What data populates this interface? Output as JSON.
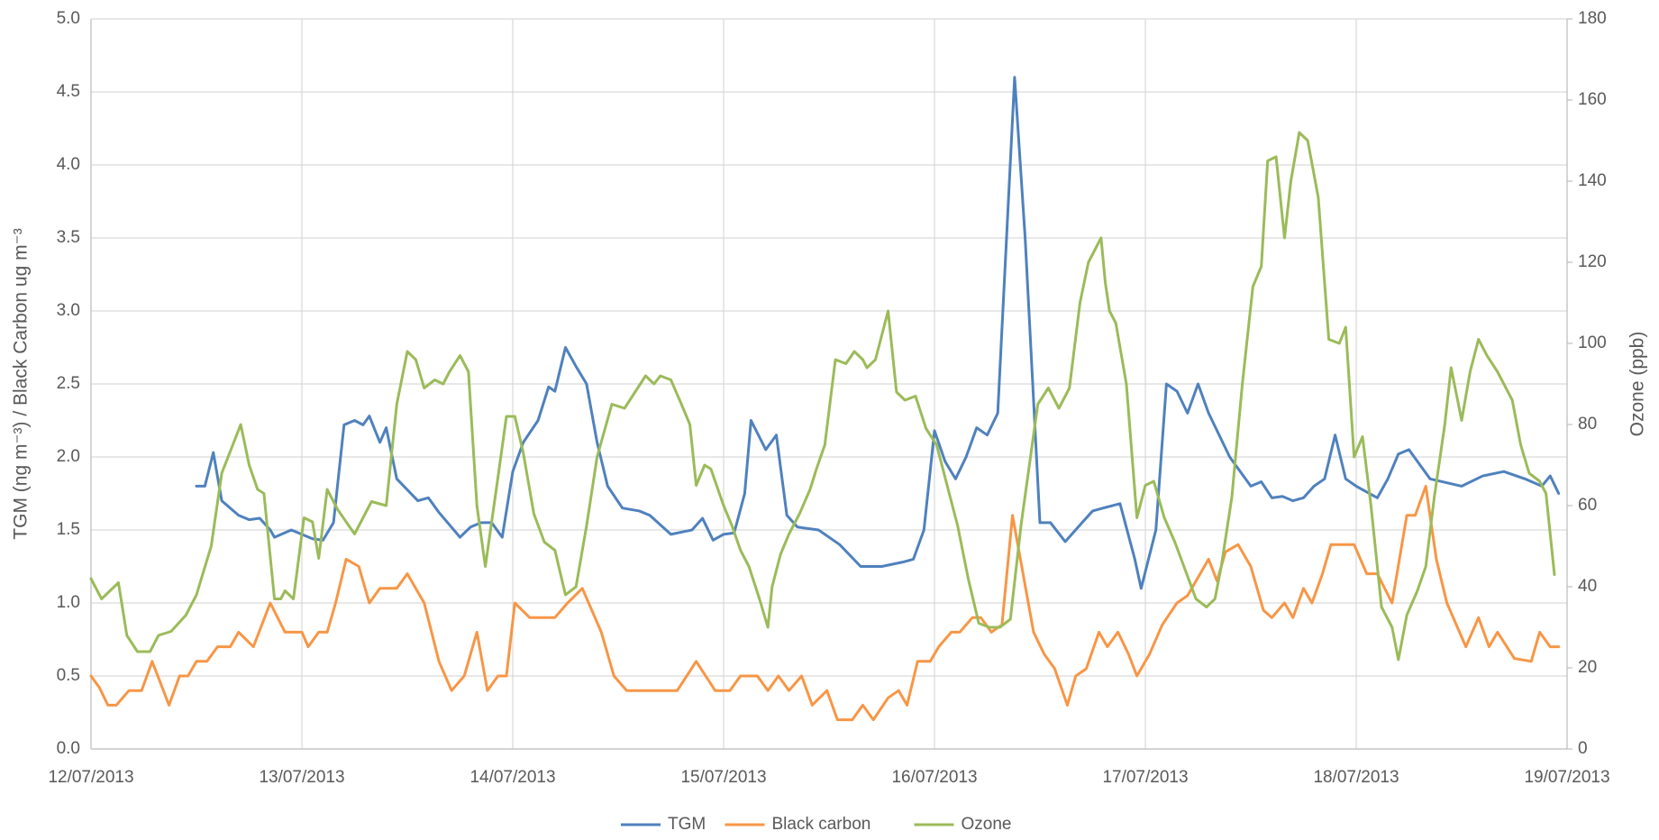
{
  "chart_data": {
    "type": "line",
    "ylabel": "TGM  (ng m⁻³) / Black Carbon ug m⁻³",
    "y2label": "Ozone (ppb)",
    "xlim": [
      0,
      7
    ],
    "xticks": [
      {
        "value": 0,
        "label": "12/07/2013"
      },
      {
        "value": 1,
        "label": "13/07/2013"
      },
      {
        "value": 2,
        "label": "14/07/2013"
      },
      {
        "value": 3,
        "label": "15/07/2013"
      },
      {
        "value": 4,
        "label": "16/07/2013"
      },
      {
        "value": 5,
        "label": "17/07/2013"
      },
      {
        "value": 6,
        "label": "18/07/2013"
      },
      {
        "value": 7,
        "label": "19/07/2013"
      }
    ],
    "ylim": [
      0,
      5
    ],
    "yticks": [
      {
        "value": 0,
        "label": "0.0"
      },
      0.5,
      {
        "value": 1,
        "label": "1.0"
      },
      1.5,
      {
        "value": 2,
        "label": "2.0"
      },
      2.5,
      {
        "value": 3,
        "label": "3.0"
      },
      3.5,
      {
        "value": 4,
        "label": "4.0"
      },
      4.5,
      {
        "value": 5,
        "label": "5.0"
      }
    ],
    "y2lim": [
      0,
      180
    ],
    "y2ticks": [
      0,
      20,
      40,
      60,
      80,
      100,
      120,
      140,
      160,
      180
    ],
    "grid": true,
    "legend": "bottom",
    "series": [
      {
        "name": "TGM",
        "color": "#4f81bd",
        "x": [
          0.5,
          0.54,
          0.58,
          0.62,
          0.66,
          0.7,
          0.75,
          0.8,
          0.85,
          0.87,
          0.95,
          1.0,
          1.05,
          1.1,
          1.15,
          1.2,
          1.25,
          1.29,
          1.32,
          1.37,
          1.4,
          1.45,
          1.55,
          1.6,
          1.65,
          1.75,
          1.8,
          1.85,
          1.9,
          1.95,
          2.0,
          2.05,
          2.12,
          2.17,
          2.2,
          2.25,
          2.3,
          2.35,
          2.4,
          2.45,
          2.52,
          2.6,
          2.65,
          2.75,
          2.85,
          2.9,
          2.95,
          3.0,
          3.05,
          3.1,
          3.13,
          3.2,
          3.25,
          3.3,
          3.35,
          3.45,
          3.55,
          3.65,
          3.75,
          3.85,
          3.9,
          3.95,
          4.0,
          4.05,
          4.1,
          4.15,
          4.2,
          4.25,
          4.3,
          4.38,
          4.43,
          4.5,
          4.55,
          4.62,
          4.7,
          4.75,
          4.8,
          4.88,
          4.95,
          4.98,
          5.05,
          5.1,
          5.15,
          5.2,
          5.25,
          5.3,
          5.4,
          5.5,
          5.55,
          5.6,
          5.65,
          5.7,
          5.75,
          5.8,
          5.85,
          5.9,
          5.95,
          6.0,
          6.1,
          6.15,
          6.2,
          6.25,
          6.35,
          6.5,
          6.6,
          6.7,
          6.8,
          6.88,
          6.92,
          6.96
        ],
        "values": [
          1.8,
          1.8,
          2.03,
          1.7,
          1.65,
          1.6,
          1.57,
          1.58,
          1.5,
          1.45,
          1.5,
          1.47,
          1.44,
          1.43,
          1.55,
          2.22,
          2.25,
          2.22,
          2.28,
          2.1,
          2.2,
          1.85,
          1.7,
          1.72,
          1.62,
          1.45,
          1.52,
          1.55,
          1.55,
          1.45,
          1.9,
          2.1,
          2.25,
          2.48,
          2.45,
          2.75,
          2.62,
          2.5,
          2.1,
          1.8,
          1.65,
          1.63,
          1.6,
          1.47,
          1.5,
          1.58,
          1.43,
          1.47,
          1.48,
          1.75,
          2.25,
          2.05,
          2.15,
          1.6,
          1.52,
          1.5,
          1.4,
          1.25,
          1.25,
          1.28,
          1.3,
          1.5,
          2.18,
          1.97,
          1.85,
          2.0,
          2.2,
          2.15,
          2.3,
          4.6,
          3.5,
          1.55,
          1.55,
          1.42,
          1.55,
          1.63,
          1.65,
          1.68,
          1.3,
          1.1,
          1.5,
          2.5,
          2.45,
          2.3,
          2.5,
          2.3,
          2.0,
          1.8,
          1.83,
          1.72,
          1.73,
          1.7,
          1.72,
          1.8,
          1.85,
          2.15,
          1.85,
          1.8,
          1.72,
          1.85,
          2.02,
          2.05,
          1.85,
          1.8,
          1.87,
          1.9,
          1.85,
          1.8,
          1.87,
          1.75
        ]
      },
      {
        "name": "Black carbon",
        "color": "#f79646",
        "x": [
          0,
          0.04,
          0.08,
          0.12,
          0.18,
          0.24,
          0.29,
          0.33,
          0.37,
          0.42,
          0.46,
          0.5,
          0.55,
          0.6,
          0.66,
          0.7,
          0.77,
          0.85,
          0.92,
          1.0,
          1.03,
          1.08,
          1.12,
          1.16,
          1.21,
          1.27,
          1.32,
          1.37,
          1.45,
          1.5,
          1.58,
          1.65,
          1.71,
          1.77,
          1.83,
          1.88,
          1.93,
          1.97,
          2.01,
          2.08,
          2.2,
          2.26,
          2.33,
          2.39,
          2.42,
          2.48,
          2.54,
          2.78,
          2.87,
          2.96,
          3.03,
          3.08,
          3.16,
          3.21,
          3.26,
          3.31,
          3.37,
          3.42,
          3.49,
          3.54,
          3.61,
          3.66,
          3.71,
          3.78,
          3.83,
          3.87,
          3.92,
          3.98,
          4.02,
          4.08,
          4.12,
          4.18,
          4.22,
          4.27,
          4.32,
          4.37,
          4.42,
          4.47,
          4.52,
          4.57,
          4.63,
          4.67,
          4.72,
          4.78,
          4.82,
          4.87,
          4.92,
          4.96,
          5.02,
          5.08,
          5.15,
          5.2,
          5.26,
          5.3,
          5.34,
          5.38,
          5.44,
          5.5,
          5.56,
          5.6,
          5.66,
          5.7,
          5.75,
          5.79,
          5.84,
          5.88,
          5.99,
          6.05,
          6.1,
          6.17,
          6.24,
          6.28,
          6.33,
          6.38,
          6.43,
          6.52,
          6.58,
          6.63,
          6.67,
          6.75,
          6.83,
          6.87,
          6.92,
          6.96
        ],
        "values": [
          0.5,
          0.42,
          0.3,
          0.3,
          0.4,
          0.4,
          0.6,
          0.45,
          0.3,
          0.5,
          0.5,
          0.6,
          0.6,
          0.7,
          0.7,
          0.8,
          0.7,
          1.0,
          0.8,
          0.8,
          0.7,
          0.8,
          0.8,
          1.0,
          1.3,
          1.25,
          1.0,
          1.1,
          1.1,
          1.2,
          1.0,
          0.6,
          0.4,
          0.5,
          0.8,
          0.4,
          0.5,
          0.5,
          1.0,
          0.9,
          0.9,
          1.0,
          1.1,
          0.9,
          0.8,
          0.5,
          0.4,
          0.4,
          0.6,
          0.4,
          0.4,
          0.5,
          0.5,
          0.4,
          0.5,
          0.4,
          0.5,
          0.3,
          0.4,
          0.2,
          0.2,
          0.3,
          0.2,
          0.35,
          0.4,
          0.3,
          0.6,
          0.6,
          0.7,
          0.8,
          0.8,
          0.9,
          0.9,
          0.8,
          0.85,
          1.6,
          1.2,
          0.8,
          0.65,
          0.55,
          0.3,
          0.5,
          0.55,
          0.8,
          0.7,
          0.8,
          0.65,
          0.5,
          0.65,
          0.85,
          1.0,
          1.05,
          1.2,
          1.3,
          1.15,
          1.35,
          1.4,
          1.25,
          0.95,
          0.9,
          1.0,
          0.9,
          1.1,
          1.0,
          1.2,
          1.4,
          1.4,
          1.2,
          1.2,
          1.0,
          1.6,
          1.6,
          1.8,
          1.3,
          1.0,
          0.7,
          0.9,
          0.7,
          0.8,
          0.62,
          0.6,
          0.8,
          0.7,
          0.7
        ]
      },
      {
        "name": "Ozone",
        "color": "#9bbb59",
        "axis": "y2",
        "x": [
          0,
          0.05,
          0.11,
          0.13,
          0.17,
          0.22,
          0.28,
          0.32,
          0.38,
          0.45,
          0.5,
          0.57,
          0.62,
          0.71,
          0.75,
          0.79,
          0.82,
          0.87,
          0.9,
          0.92,
          0.96,
          1.01,
          1.05,
          1.08,
          1.12,
          1.17,
          1.25,
          1.3,
          1.33,
          1.4,
          1.45,
          1.5,
          1.54,
          1.58,
          1.63,
          1.67,
          1.7,
          1.75,
          1.79,
          1.83,
          1.87,
          1.93,
          1.97,
          2.01,
          2.05,
          2.1,
          2.15,
          2.2,
          2.25,
          2.3,
          2.35,
          2.4,
          2.47,
          2.53,
          2.58,
          2.63,
          2.67,
          2.7,
          2.75,
          2.8,
          2.84,
          2.87,
          2.91,
          2.94,
          3.0,
          3.04,
          3.08,
          3.12,
          3.17,
          3.21,
          3.23,
          3.27,
          3.31,
          3.36,
          3.41,
          3.44,
          3.48,
          3.53,
          3.58,
          3.62,
          3.66,
          3.68,
          3.72,
          3.78,
          3.82,
          3.86,
          3.91,
          3.96,
          4.01,
          4.06,
          4.11,
          4.16,
          4.21,
          4.26,
          4.31,
          4.36,
          4.41,
          4.49,
          4.54,
          4.59,
          4.64,
          4.69,
          4.73,
          4.76,
          4.79,
          4.81,
          4.83,
          4.86,
          4.91,
          4.96,
          5.0,
          5.04,
          5.09,
          5.14,
          5.19,
          5.24,
          5.29,
          5.33,
          5.36,
          5.41,
          5.46,
          5.51,
          5.55,
          5.58,
          5.62,
          5.66,
          5.69,
          5.73,
          5.77,
          5.82,
          5.87,
          5.92,
          5.95,
          5.99,
          6.03,
          6.07,
          6.12,
          6.17,
          6.2,
          6.24,
          6.29,
          6.33,
          6.37,
          6.42,
          6.45,
          6.5,
          6.54,
          6.58,
          6.62,
          6.67,
          6.74,
          6.78,
          6.82,
          6.87,
          6.9,
          6.94
        ],
        "values": [
          42,
          37,
          40,
          41,
          28,
          24,
          24,
          28,
          29,
          33,
          38,
          50,
          68,
          80,
          70,
          64,
          63,
          37,
          37,
          39,
          37,
          57,
          56,
          47,
          64,
          59,
          53,
          58,
          61,
          60,
          85,
          98,
          96,
          89,
          91,
          90,
          93,
          97,
          93,
          60,
          45,
          67,
          82,
          82,
          73,
          58,
          51,
          49,
          38,
          40,
          55,
          72,
          85,
          84,
          88,
          92,
          90,
          92,
          91,
          85,
          80,
          65,
          70,
          69,
          60,
          55,
          49,
          45,
          37,
          30,
          40,
          48,
          53,
          58,
          64,
          69,
          75,
          96,
          95,
          98,
          96,
          94,
          96,
          108,
          88,
          86,
          87,
          79,
          75,
          65,
          55,
          42,
          31,
          30,
          30,
          32,
          55,
          85,
          89,
          84,
          89,
          110,
          120,
          123,
          126,
          115,
          108,
          105,
          90,
          57,
          65,
          66,
          57,
          51,
          44,
          37,
          35,
          37,
          45,
          62,
          90,
          114,
          119,
          145,
          146,
          126,
          140,
          152,
          150,
          136,
          101,
          100,
          104,
          72,
          77,
          60,
          35,
          30,
          22,
          33,
          39,
          45,
          62,
          80,
          94,
          81,
          93,
          101,
          97,
          93,
          86,
          75,
          68,
          66,
          63,
          43
        ]
      }
    ]
  }
}
